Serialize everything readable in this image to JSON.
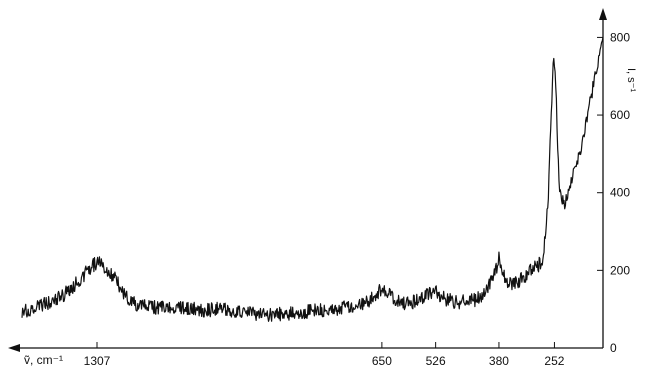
{
  "chart_data": {
    "type": "line",
    "title": "",
    "xlabel": "ṽ, cm⁻¹",
    "ylabel": "I, s⁻¹",
    "x_reversed": true,
    "xlim": [
      1480,
      140
    ],
    "ylim": [
      0,
      850
    ],
    "grid": false,
    "x_ticks": [
      {
        "value": 1307,
        "label": "1307"
      },
      {
        "value": 650,
        "label": "650"
      },
      {
        "value": 526,
        "label": "526"
      },
      {
        "value": 380,
        "label": "380"
      },
      {
        "value": 252,
        "label": "252"
      }
    ],
    "y_ticks": [
      {
        "value": 0,
        "label": "0"
      },
      {
        "value": 200,
        "label": "200"
      },
      {
        "value": 400,
        "label": "400"
      },
      {
        "value": 600,
        "label": "600"
      },
      {
        "value": 800,
        "label": "800"
      }
    ],
    "series": [
      {
        "name": "",
        "color": "#111111",
        "x": [
          1480,
          1460,
          1440,
          1420,
          1400,
          1380,
          1360,
          1340,
          1320,
          1307,
          1290,
          1270,
          1250,
          1230,
          1210,
          1190,
          1170,
          1150,
          1130,
          1110,
          1090,
          1070,
          1050,
          1030,
          1010,
          990,
          970,
          950,
          930,
          910,
          890,
          870,
          850,
          830,
          810,
          790,
          770,
          750,
          730,
          710,
          690,
          675,
          660,
          650,
          640,
          625,
          610,
          595,
          580,
          565,
          550,
          540,
          526,
          515,
          500,
          485,
          470,
          455,
          440,
          425,
          410,
          395,
          385,
          380,
          375,
          368,
          360,
          350,
          340,
          330,
          320,
          310,
          300,
          290,
          280,
          272,
          266,
          262,
          258,
          255,
          252,
          249,
          246,
          243,
          240,
          237,
          234,
          230,
          225,
          220,
          215,
          210,
          205,
          200,
          195,
          190,
          185,
          180,
          175,
          170,
          165,
          160,
          155,
          150,
          145,
          140
        ],
        "y": [
          95,
          100,
          108,
          115,
          125,
          140,
          160,
          185,
          210,
          220,
          210,
          185,
          150,
          120,
          110,
          105,
          104,
          103,
          103,
          104,
          102,
          98,
          98,
          100,
          98,
          95,
          92,
          90,
          88,
          86,
          87,
          88,
          90,
          92,
          95,
          98,
          100,
          102,
          105,
          108,
          115,
          125,
          140,
          155,
          145,
          130,
          120,
          112,
          118,
          125,
          135,
          142,
          145,
          135,
          125,
          120,
          118,
          120,
          122,
          130,
          150,
          180,
          210,
          230,
          210,
          185,
          170,
          165,
          168,
          175,
          185,
          195,
          205,
          210,
          230,
          290,
          400,
          520,
          640,
          720,
          740,
          690,
          580,
          470,
          420,
          395,
          380,
          370,
          380,
          400,
          420,
          440,
          460,
          480,
          500,
          520,
          545,
          570,
          600,
          630,
          660,
          690,
          720,
          750,
          780,
          800
        ]
      }
    ]
  }
}
